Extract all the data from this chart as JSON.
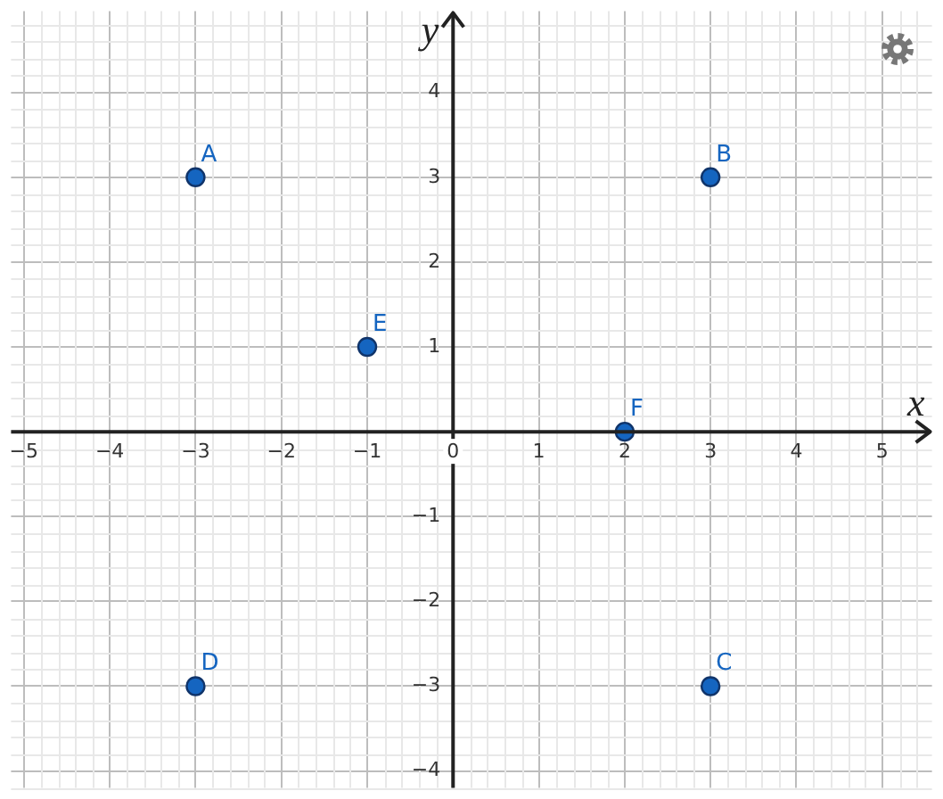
{
  "chart_data": {
    "type": "scatter",
    "xlabel": "x",
    "ylabel": "y",
    "x": [
      -3,
      3,
      3,
      -3,
      -1,
      2
    ],
    "values": [
      3,
      3,
      -3,
      -3,
      1,
      0
    ],
    "color": "#1565c0",
    "marker": "circle",
    "xlim": [
      -5.15,
      5.58
    ],
    "ylim": [
      -4.2,
      4.96
    ],
    "xticks": [
      {
        "value": -5,
        "label": "−5"
      },
      {
        "value": -4,
        "label": "−4"
      },
      {
        "value": -3,
        "label": "−3"
      },
      {
        "value": -2,
        "label": "−2"
      },
      {
        "value": -1,
        "label": "−1"
      },
      0,
      1,
      2,
      3,
      4,
      5
    ],
    "yticks": [
      {
        "value": -4,
        "label": "−4"
      },
      {
        "value": -3,
        "label": "−3"
      },
      {
        "value": -2,
        "label": "−2"
      },
      {
        "value": -1,
        "label": "−1"
      },
      1,
      2,
      3,
      4
    ],
    "grid": true,
    "annotations": [
      {
        "text": "A",
        "x": -3,
        "y": 3
      },
      {
        "text": "B",
        "x": 3,
        "y": 3
      },
      {
        "text": "C",
        "x": 3,
        "y": -3
      },
      {
        "text": "D",
        "x": -3,
        "y": -3
      },
      {
        "text": "E",
        "x": -1,
        "y": 1
      },
      {
        "text": "F",
        "x": 2,
        "y": 0
      }
    ]
  }
}
